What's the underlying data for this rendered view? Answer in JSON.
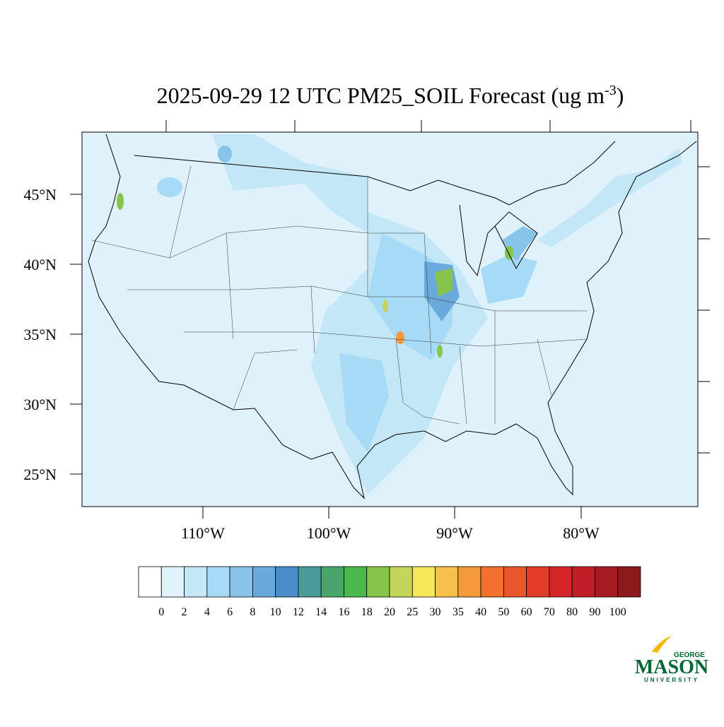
{
  "title": {
    "main": "2025-09-29 12 UTC PM25_SOIL Forecast (ug m",
    "sup": "-3",
    "end": ")"
  },
  "map": {
    "lat_labels": [
      "45°N",
      "40°N",
      "35°N",
      "30°N",
      "25°N"
    ],
    "lon_labels": [
      "110°W",
      "100°W",
      "90°W",
      "80°W"
    ]
  },
  "colorbar": {
    "labels": [
      "0",
      "2",
      "4",
      "6",
      "8",
      "10",
      "12",
      "14",
      "16",
      "18",
      "20",
      "25",
      "30",
      "35",
      "40",
      "50",
      "60",
      "70",
      "80",
      "90",
      "100"
    ],
    "colors": [
      "#ffffff",
      "#e0f3fb",
      "#c4e7f7",
      "#a6daf5",
      "#88c4ea",
      "#6aa9dc",
      "#4a8dc9",
      "#4a9a9a",
      "#4aa56a",
      "#4ab84a",
      "#86c44c",
      "#c4d65a",
      "#f5e65a",
      "#f7c04a",
      "#f59a3c",
      "#f2712e",
      "#ea552a",
      "#e03c28",
      "#d42428",
      "#c01e26",
      "#a81a22",
      "#8c1a1c"
    ]
  },
  "logo": {
    "top": "GEORGE",
    "main": "MASON",
    "bottom": "UNIVERSITY"
  }
}
